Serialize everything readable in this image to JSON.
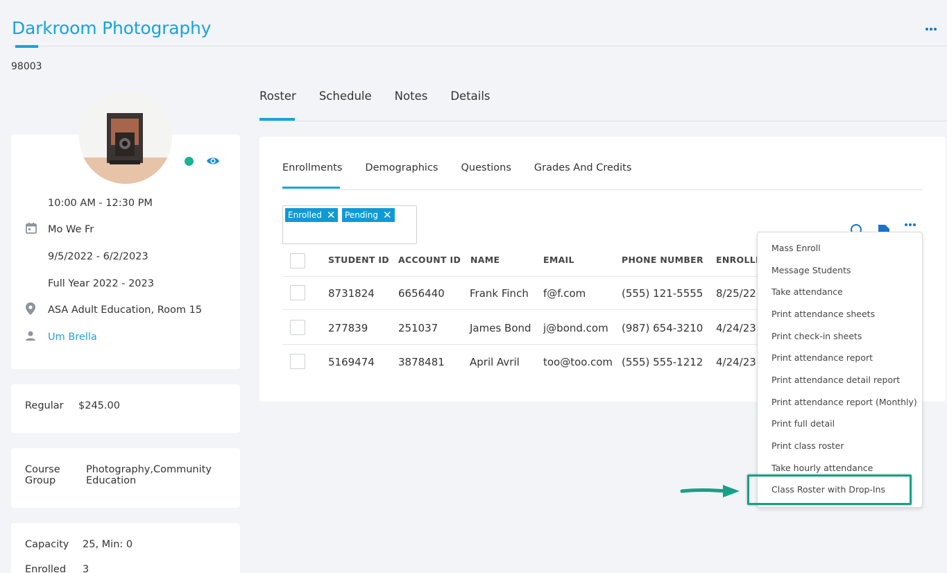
{
  "header": {
    "title": "Darkroom Photography",
    "zip": "98003"
  },
  "info": {
    "time": "10:00 AM - 12:30 PM",
    "days": "Mo We Fr",
    "dates": "9/5/2022 - 6/2/2023",
    "term": "Full Year 2022 - 2023",
    "location": "ASA Adult Education, Room 15",
    "instructor": "Um Brella"
  },
  "price": {
    "label": "Regular",
    "value": "$245.00"
  },
  "group": {
    "label_line1": "Course",
    "label_line2": "Group",
    "value_line1": "Photography,Community",
    "value_line2": "Education"
  },
  "capacity": {
    "label": "Capacity",
    "value": "25, Min: 0",
    "enrolled_label": "Enrolled",
    "enrolled_value": "3"
  },
  "main_tabs": [
    "Roster",
    "Schedule",
    "Notes",
    "Details"
  ],
  "sub_tabs": [
    "Enrollments",
    "Demographics",
    "Questions",
    "Grades And Credits"
  ],
  "filters": [
    "Enrolled",
    "Pending"
  ],
  "table": {
    "headers": [
      "STUDENT ID",
      "ACCOUNT ID",
      "NAME",
      "EMAIL",
      "PHONE NUMBER",
      "ENROLLM"
    ],
    "rows": [
      [
        "8731824",
        "6656440",
        "Frank Finch",
        "f@f.com",
        "(555) 121-5555",
        "8/25/22"
      ],
      [
        "277839",
        "251037",
        "James Bond",
        "j@bond.com",
        "(987) 654-3210",
        "4/24/23"
      ],
      [
        "5169474",
        "3878481",
        "April Avril",
        "too@too.com",
        "(555) 555-1212",
        "4/24/23"
      ]
    ]
  },
  "menu_items": [
    "Mass Enroll",
    "Message Students",
    "Take attendance",
    "Print attendance sheets",
    "Print check-in sheets",
    "Print attendance report",
    "Print attendance detail report",
    "Print attendance report (Monthly)",
    "Print full detail",
    "Print class roster",
    "Take hourly attendance",
    "Class Roster with Drop-Ins"
  ],
  "colors": {
    "accent": "#1aa3d9",
    "chip": "#0f9ad6",
    "status": "#1ab394",
    "highlight": "#17a085"
  },
  "icons": {
    "status": "active-status-dot",
    "visibility": "eye-icon",
    "calendar": "calendar-icon",
    "location": "location-pin-icon",
    "person": "person-icon",
    "search": "search-icon",
    "export": "export-icon",
    "more": "more-icon"
  }
}
